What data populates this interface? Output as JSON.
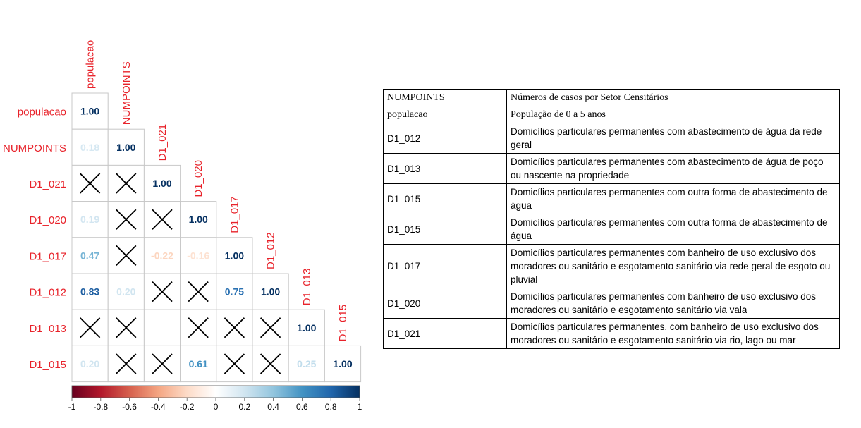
{
  "chart_data": {
    "type": "heatmap",
    "variables": [
      "populacao",
      "NUMPOINTS",
      "D1_021",
      "D1_020",
      "D1_017",
      "D1_012",
      "D1_013",
      "D1_015"
    ],
    "matrix": [
      [
        1.0,
        null,
        null,
        null,
        null,
        null,
        null,
        null
      ],
      [
        0.18,
        1.0,
        null,
        null,
        null,
        null,
        null,
        null
      ],
      [
        null,
        null,
        1.0,
        null,
        null,
        null,
        null,
        null
      ],
      [
        0.19,
        null,
        null,
        1.0,
        null,
        null,
        null,
        null
      ],
      [
        0.47,
        null,
        -0.22,
        -0.16,
        1.0,
        null,
        null,
        null
      ],
      [
        0.83,
        0.2,
        null,
        null,
        0.75,
        1.0,
        null,
        null
      ],
      [
        null,
        null,
        null,
        null,
        null,
        null,
        1.0,
        null
      ],
      [
        0.2,
        null,
        null,
        0.61,
        null,
        null,
        0.25,
        1.0
      ]
    ],
    "crossed": [
      [
        2,
        0
      ],
      [
        2,
        1
      ],
      [
        3,
        1
      ],
      [
        3,
        2
      ],
      [
        4,
        1
      ],
      [
        5,
        2
      ],
      [
        5,
        3
      ],
      [
        6,
        0
      ],
      [
        6,
        1
      ],
      [
        6,
        3
      ],
      [
        6,
        4
      ],
      [
        6,
        5
      ],
      [
        7,
        1
      ],
      [
        7,
        2
      ],
      [
        7,
        4
      ],
      [
        7,
        5
      ]
    ],
    "colorbar": {
      "ticks": [
        "-1",
        "-0.8",
        "-0.6",
        "-0.4",
        "-0.2",
        "0",
        "0.2",
        "0.4",
        "0.6",
        "0.8",
        "1"
      ],
      "range": [
        -1,
        1
      ],
      "colors": [
        "#67001F",
        "#B2182B",
        "#D6604D",
        "#F4A582",
        "#FDDBC7",
        "#FFFFFF",
        "#D1E5F0",
        "#92C5DE",
        "#4393C3",
        "#2166AC",
        "#053061"
      ]
    },
    "label_color": "#E8222A"
  },
  "table": {
    "rows": [
      {
        "code": "NUMPOINTS",
        "description": "Números de casos por Setor Censitários",
        "serif": true
      },
      {
        "code": "populacao",
        "description": "População de 0 a 5 anos",
        "serif": true
      },
      {
        "code": "D1_012",
        "description": "Domicílios particulares permanentes com abastecimento de água da rede geral",
        "serif": false
      },
      {
        "code": "D1_013",
        "description": "Domicílios particulares permanentes com abastecimento de água de poço ou nascente na propriedade",
        "serif": false
      },
      {
        "code": "D1_015",
        "description": "Domicílios particulares permanentes com outra forma de abastecimento de água",
        "serif": false
      },
      {
        "code": "D1_015",
        "description": "Domicílios particulares permanentes com outra forma de abastecimento de água",
        "serif": false
      },
      {
        "code": "D1_017",
        "description": "Domicílios particulares permanentes com banheiro de uso exclusivo dos moradores ou sanitário e esgotamento sanitário via rede geral de esgoto ou pluvial",
        "serif": false
      },
      {
        "code": "D1_020",
        "description": "Domicílios particulares permanentes com banheiro de uso exclusivo dos moradores ou sanitário e esgotamento sanitário via vala",
        "serif": false
      },
      {
        "code": "D1_021",
        "description": "Domicílios particulares permanentes, com banheiro de uso exclusivo dos moradores ou sanitário e esgotamento sanitário via rio, lago ou mar",
        "serif": false
      }
    ]
  }
}
